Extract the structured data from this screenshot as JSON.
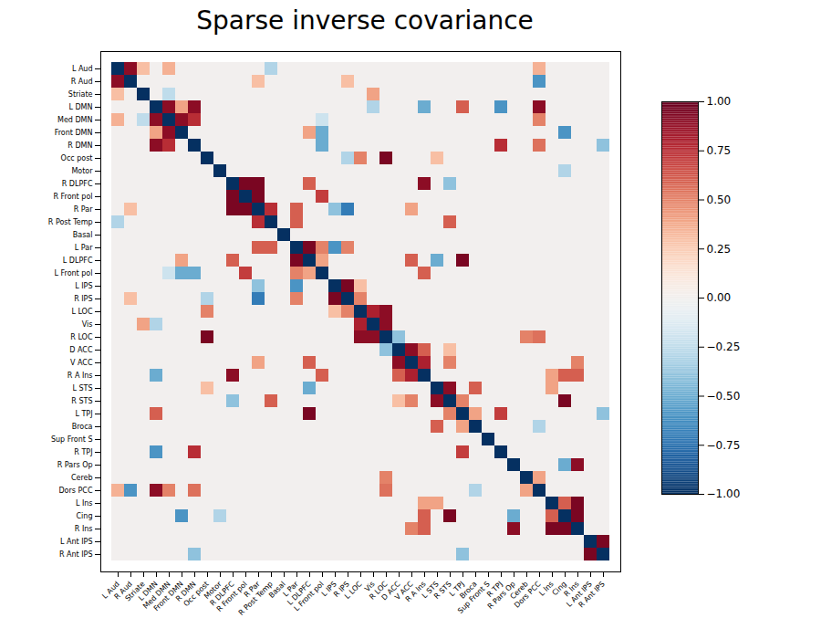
{
  "chart_data": {
    "type": "heatmap",
    "title": "Sparse inverse covariance",
    "categories": [
      "L Aud",
      "R Aud",
      "Striate",
      "L DMN",
      "Med DMN",
      "Front DMN",
      "R DMN",
      "Occ post",
      "Motor",
      "R DLPFC",
      "R Front pol",
      "R Par",
      "R Post Temp",
      "Basal",
      "L Par",
      "L DLPFC",
      "L Front pol",
      "L IPS",
      "R IPS",
      "L LOC",
      "Vis",
      "R LOC",
      "D ACC",
      "V ACC",
      "R A Ins",
      "L STS",
      "R STS",
      "L TPJ",
      "Broca",
      "Sup Front S",
      "R TPJ",
      "R Pars Op",
      "Cereb",
      "Dors PCC",
      "L Ins",
      "Cing",
      "R Ins",
      "L Ant IPS",
      "R Ant IPS"
    ],
    "cells": [
      [
        -1,
        0.9,
        0.3,
        0,
        0.35,
        0,
        0,
        0,
        0,
        0,
        0,
        0,
        -0.3,
        0,
        0,
        0,
        0,
        0,
        0,
        0,
        0,
        0,
        0,
        0,
        0,
        0,
        0,
        0,
        0,
        0,
        0,
        0,
        0,
        0.35,
        0,
        0,
        0,
        0,
        0
      ],
      [
        0.9,
        -1,
        0,
        0,
        0,
        0,
        0,
        0,
        0,
        0,
        0,
        0.3,
        0,
        0,
        0,
        0,
        0,
        0,
        0.3,
        0,
        0,
        0,
        0,
        0,
        0,
        0,
        0,
        0,
        0,
        0,
        0,
        0,
        0,
        -0.6,
        0,
        0,
        0,
        0,
        0
      ],
      [
        0.3,
        0,
        -1,
        0,
        -0.25,
        0,
        0,
        0,
        0,
        0,
        0,
        0,
        0,
        0,
        0,
        0,
        0,
        0,
        0,
        0,
        0.4,
        0,
        0,
        0,
        0,
        0,
        0,
        0,
        0,
        0,
        0,
        0,
        0,
        0,
        0,
        0,
        0,
        0,
        0
      ],
      [
        0,
        0,
        0,
        -1,
        0.9,
        0.4,
        0.9,
        0,
        0,
        0,
        0,
        0,
        0,
        0,
        0,
        0,
        0,
        0,
        0,
        0,
        -0.3,
        0,
        0,
        0,
        -0.5,
        0,
        0,
        0.6,
        0,
        0,
        -0.6,
        0,
        0,
        0.9,
        0,
        0,
        0,
        0,
        0
      ],
      [
        0.35,
        0,
        -0.25,
        0.9,
        -1,
        0.9,
        0.75,
        0,
        0,
        0,
        0,
        0,
        0,
        0,
        0,
        0,
        -0.2,
        0,
        0,
        0,
        0,
        0,
        0,
        0,
        0,
        0,
        0,
        0,
        0,
        0,
        0,
        0,
        0,
        0.5,
        0,
        0,
        0,
        0,
        0
      ],
      [
        0,
        0,
        0,
        0.4,
        0.9,
        -1,
        0,
        0,
        0,
        0,
        0,
        0,
        0,
        0,
        0,
        0.4,
        -0.5,
        0,
        0,
        0,
        0,
        0,
        0,
        0,
        0,
        0,
        0,
        0,
        0,
        0,
        0,
        0,
        0,
        0,
        0,
        -0.6,
        0,
        0,
        0
      ],
      [
        0,
        0,
        0,
        0.9,
        0.75,
        0,
        -1,
        0,
        0,
        0,
        0,
        0,
        0,
        0,
        0,
        0,
        -0.5,
        0,
        0,
        0,
        0,
        0,
        0,
        0,
        0,
        0,
        0,
        0,
        0,
        0,
        0.75,
        0,
        0,
        0.55,
        0,
        0,
        0,
        0,
        -0.4
      ],
      [
        0,
        0,
        0,
        0,
        0,
        0,
        0,
        -1,
        0,
        0,
        0,
        0,
        0,
        0,
        0,
        0,
        0,
        0,
        -0.3,
        0.5,
        0,
        0.95,
        0,
        0,
        0,
        0.3,
        0,
        0,
        0,
        0,
        0,
        0,
        0,
        0,
        0,
        0,
        0,
        0,
        0
      ],
      [
        0,
        0,
        0,
        0,
        0,
        0,
        0,
        0,
        -1,
        0,
        0,
        0,
        0,
        0,
        0,
        0,
        0,
        0,
        0,
        0,
        0,
        0,
        0,
        0,
        0,
        0,
        0,
        0,
        0,
        0,
        0,
        0,
        0,
        0,
        0,
        -0.3,
        0,
        0,
        0
      ],
      [
        0,
        0,
        0,
        0,
        0,
        0,
        0,
        0,
        0,
        -1,
        0.95,
        0.95,
        0,
        0,
        0,
        0.6,
        0,
        0,
        0,
        0,
        0,
        0,
        0,
        0,
        0.9,
        0,
        -0.4,
        0,
        0,
        0,
        0,
        0,
        0,
        0,
        0,
        0,
        0,
        0,
        0
      ],
      [
        0,
        0,
        0,
        0,
        0,
        0,
        0,
        0,
        0,
        0.95,
        -1,
        0.95,
        0,
        0,
        0,
        0,
        0.7,
        0,
        0,
        0,
        0,
        0,
        0,
        0,
        0,
        0,
        0,
        0,
        0,
        0,
        0,
        0,
        0,
        0,
        0,
        0,
        0,
        0,
        0
      ],
      [
        0,
        0.3,
        0,
        0,
        0,
        0,
        0,
        0,
        0,
        0.95,
        0.95,
        -1,
        0.75,
        0,
        0.6,
        0,
        0,
        -0.4,
        -0.7,
        0,
        0,
        0,
        0,
        0.4,
        0,
        0,
        0,
        0,
        0,
        0,
        0,
        0,
        0,
        0,
        0,
        0,
        0,
        0,
        0
      ],
      [
        -0.3,
        0,
        0,
        0,
        0,
        0,
        0,
        0,
        0,
        0,
        0,
        0.75,
        -1,
        0,
        0.6,
        0,
        0,
        0,
        0,
        0,
        0,
        0,
        0,
        0,
        0,
        0,
        0.6,
        0,
        0,
        0,
        0,
        0,
        0,
        0,
        0,
        0,
        0,
        0,
        0
      ],
      [
        0,
        0,
        0,
        0,
        0,
        0,
        0,
        0,
        0,
        0,
        0,
        0,
        0,
        -1,
        0,
        0,
        0,
        0,
        0,
        0,
        0,
        0,
        0,
        0,
        0,
        0,
        0,
        0,
        0,
        0,
        0,
        0,
        0,
        0,
        0,
        0,
        0,
        0,
        0
      ],
      [
        0,
        0,
        0,
        0,
        0,
        0,
        0,
        0,
        0,
        0,
        0,
        0.6,
        0.6,
        0,
        -1,
        0.95,
        0.5,
        -0.6,
        0.5,
        0,
        0,
        0,
        0,
        0,
        0,
        0,
        0,
        0,
        0,
        0,
        0,
        0,
        0,
        0,
        0,
        0,
        0,
        0,
        0
      ],
      [
        0,
        0,
        0,
        0,
        0,
        0.4,
        0,
        0,
        0,
        0.6,
        0,
        0,
        0,
        0,
        0.95,
        -1,
        0.4,
        0,
        0,
        0,
        0,
        0,
        0,
        0.6,
        0,
        -0.5,
        0,
        0.95,
        0,
        0,
        0,
        0,
        0,
        0,
        0,
        0,
        0,
        0,
        0
      ],
      [
        0,
        0,
        0,
        0,
        -0.2,
        -0.5,
        -0.5,
        0,
        0,
        0,
        0.7,
        0,
        0,
        0,
        0.5,
        0.4,
        -1,
        0,
        0,
        0,
        0,
        0,
        0,
        0,
        0.6,
        0,
        0,
        0,
        0,
        0,
        0,
        0,
        0,
        0,
        0,
        0,
        0,
        0,
        0
      ],
      [
        0,
        0,
        0,
        0,
        0,
        0,
        0,
        0,
        0,
        0,
        0,
        -0.4,
        0,
        0,
        -0.6,
        0,
        0,
        -1,
        0.95,
        0.3,
        0,
        0,
        0,
        0,
        0,
        0,
        0,
        0,
        0,
        0,
        0,
        0,
        0,
        0,
        0,
        0,
        0,
        0,
        0
      ],
      [
        0,
        0.3,
        0,
        0,
        0,
        0,
        0,
        -0.3,
        0,
        0,
        0,
        -0.7,
        0,
        0,
        0.5,
        0,
        0,
        0.95,
        -1,
        0.5,
        0,
        0,
        0,
        0,
        0,
        0,
        0,
        0,
        0,
        0,
        0,
        0,
        0,
        0,
        0,
        0,
        0,
        0,
        0
      ],
      [
        0,
        0,
        0,
        0,
        0,
        0,
        0,
        0.5,
        0,
        0,
        0,
        0,
        0,
        0,
        0,
        0,
        0,
        0.3,
        0.5,
        -1,
        0.8,
        0.9,
        0,
        0,
        0,
        0,
        0,
        0,
        0,
        0,
        0,
        0,
        0,
        0,
        0,
        0,
        0,
        0,
        0
      ],
      [
        0,
        0,
        0.4,
        -0.3,
        0,
        0,
        0,
        0,
        0,
        0,
        0,
        0,
        0,
        0,
        0,
        0,
        0,
        0,
        0,
        0.8,
        -1,
        0.9,
        0,
        0,
        0,
        0,
        0,
        0,
        0,
        0,
        0,
        0,
        0,
        0,
        0,
        0,
        0,
        0,
        0
      ],
      [
        0,
        0,
        0,
        0,
        0,
        0,
        0,
        0.95,
        0,
        0,
        0,
        0,
        0,
        0,
        0,
        0,
        0,
        0,
        0,
        0.9,
        0.9,
        -1,
        -0.4,
        0,
        0,
        0,
        0,
        0,
        0,
        0,
        0,
        0,
        0.5,
        0.55,
        0,
        0,
        0,
        0,
        0
      ],
      [
        0,
        0,
        0,
        0,
        0,
        0,
        0,
        0,
        0,
        0,
        0,
        0,
        0,
        0,
        0,
        0,
        0,
        0,
        0,
        0,
        0,
        -0.4,
        -1,
        0.9,
        0.6,
        0,
        0.3,
        0,
        0,
        0,
        0,
        0,
        0,
        0,
        0,
        0,
        0,
        0,
        0
      ],
      [
        0,
        0,
        0,
        0,
        0,
        0,
        0,
        0,
        0,
        0,
        0,
        0.4,
        0,
        0,
        0,
        0.6,
        0,
        0,
        0,
        0,
        0,
        0,
        0.9,
        -1,
        0.8,
        0,
        0.5,
        0,
        0,
        0,
        0,
        0,
        0,
        0,
        0,
        0,
        0.5,
        0,
        0
      ],
      [
        0,
        0,
        0,
        -0.5,
        0,
        0,
        0,
        0,
        0,
        0.9,
        0,
        0,
        0,
        0,
        0,
        0,
        0.6,
        0,
        0,
        0,
        0,
        0,
        0.6,
        0.8,
        -1,
        0,
        0,
        0,
        0,
        0,
        0,
        0,
        0,
        0,
        0.4,
        0.6,
        0.6,
        0,
        0
      ],
      [
        0,
        0,
        0,
        0,
        0,
        0,
        0,
        0.3,
        0,
        0,
        0,
        0,
        0,
        0,
        0,
        -0.5,
        0,
        0,
        0,
        0,
        0,
        0,
        0,
        0,
        0,
        -1,
        0.9,
        0,
        0.6,
        0,
        0,
        0,
        0,
        0,
        0.4,
        0,
        0,
        0,
        0
      ],
      [
        0,
        0,
        0,
        0,
        0,
        0,
        0,
        0,
        0,
        -0.4,
        0,
        0,
        0.6,
        0,
        0,
        0,
        0,
        0,
        0,
        0,
        0,
        0,
        0.3,
        0.5,
        0,
        0.9,
        -1,
        0.5,
        0,
        0,
        0,
        0,
        0,
        0,
        0,
        0.95,
        0,
        0,
        0
      ],
      [
        0,
        0,
        0,
        0.6,
        0,
        0,
        0,
        0,
        0,
        0,
        0,
        0,
        0,
        0,
        0,
        0.95,
        0,
        0,
        0,
        0,
        0,
        0,
        0,
        0,
        0,
        0,
        0.5,
        -1,
        0.4,
        0,
        0.7,
        0,
        0,
        0,
        0,
        0,
        0,
        0,
        -0.4
      ],
      [
        0,
        0,
        0,
        0,
        0,
        0,
        0,
        0,
        0,
        0,
        0,
        0,
        0,
        0,
        0,
        0,
        0,
        0,
        0,
        0,
        0,
        0,
        0,
        0,
        0,
        0.6,
        0,
        0.4,
        -1,
        0,
        0,
        0,
        0,
        -0.3,
        0,
        0,
        0,
        0,
        0
      ],
      [
        0,
        0,
        0,
        0,
        0,
        0,
        0,
        0,
        0,
        0,
        0,
        0,
        0,
        0,
        0,
        0,
        0,
        0,
        0,
        0,
        0,
        0,
        0,
        0,
        0,
        0,
        0,
        0,
        0,
        -1,
        0,
        0,
        0,
        0,
        0,
        0,
        0,
        0,
        0
      ],
      [
        0,
        0,
        0,
        -0.6,
        0,
        0,
        0.75,
        0,
        0,
        0,
        0,
        0,
        0,
        0,
        0,
        0,
        0,
        0,
        0,
        0,
        0,
        0,
        0,
        0,
        0,
        0,
        0,
        0.7,
        0,
        0,
        -1,
        0,
        0,
        0,
        0,
        0,
        0,
        0,
        0
      ],
      [
        0,
        0,
        0,
        0,
        0,
        0,
        0,
        0,
        0,
        0,
        0,
        0,
        0,
        0,
        0,
        0,
        0,
        0,
        0,
        0,
        0,
        0,
        0,
        0,
        0,
        0,
        0,
        0,
        0,
        0,
        0,
        -1,
        0,
        0,
        0,
        -0.5,
        0.9,
        0,
        0
      ],
      [
        0,
        0,
        0,
        0,
        0,
        0,
        0,
        0,
        0,
        0,
        0,
        0,
        0,
        0,
        0,
        0,
        0,
        0,
        0,
        0,
        0,
        0.5,
        0,
        0,
        0,
        0,
        0,
        0,
        0,
        0,
        0,
        0,
        -1,
        0.4,
        0,
        0,
        0,
        0,
        0
      ],
      [
        0.35,
        -0.6,
        0,
        0.9,
        0.5,
        0,
        0.55,
        0,
        0,
        0,
        0,
        0,
        0,
        0,
        0,
        0,
        0,
        0,
        0,
        0,
        0,
        0.55,
        0,
        0,
        0,
        0,
        0,
        0,
        -0.3,
        0,
        0,
        0,
        0.4,
        -1,
        0,
        0,
        0,
        0,
        0
      ],
      [
        0,
        0,
        0,
        0,
        0,
        0,
        0,
        0,
        0,
        0,
        0,
        0,
        0,
        0,
        0,
        0,
        0,
        0,
        0,
        0,
        0,
        0,
        0,
        0,
        0.4,
        0.4,
        0,
        0,
        0,
        0,
        0,
        0,
        0,
        0,
        -1,
        0.6,
        0.95,
        0,
        0
      ],
      [
        0,
        0,
        0,
        0,
        0,
        -0.6,
        0,
        0,
        -0.3,
        0,
        0,
        0,
        0,
        0,
        0,
        0,
        0,
        0,
        0,
        0,
        0,
        0,
        0,
        0,
        0.6,
        0,
        0.95,
        0,
        0,
        0,
        0,
        -0.5,
        0,
        0,
        0.6,
        -1,
        0.95,
        0,
        0
      ],
      [
        0,
        0,
        0,
        0,
        0,
        0,
        0,
        0,
        0,
        0,
        0,
        0,
        0,
        0,
        0,
        0,
        0,
        0,
        0,
        0,
        0,
        0,
        0,
        0.5,
        0.6,
        0,
        0,
        0,
        0,
        0,
        0,
        0.9,
        0,
        0,
        0.95,
        0.95,
        -1,
        0,
        0
      ],
      [
        0,
        0,
        0,
        0,
        0,
        0,
        0,
        0,
        0,
        0,
        0,
        0,
        0,
        0,
        0,
        0,
        0,
        0,
        0,
        0,
        0,
        0,
        0,
        0,
        0,
        0,
        0,
        0,
        0,
        0,
        0,
        0,
        0,
        0,
        0,
        0,
        0,
        -1,
        0.95
      ],
      [
        0,
        0,
        0,
        0,
        0,
        0,
        -0.4,
        0,
        0,
        0,
        0,
        0,
        0,
        0,
        0,
        0,
        0,
        0,
        0,
        0,
        0,
        0,
        0,
        0,
        0,
        0,
        0,
        -0.4,
        0,
        0,
        0,
        0,
        0,
        0,
        0,
        0,
        0,
        0.95,
        -1
      ]
    ],
    "color_range": [
      -1,
      1
    ],
    "color_ticks": [
      {
        "value": -1,
        "label": "−1.00"
      },
      {
        "value": -0.75,
        "label": "−0.75"
      },
      {
        "value": -0.5,
        "label": "−0.50"
      },
      {
        "value": -0.25,
        "label": "−0.25"
      },
      {
        "value": 0,
        "label": "0.00"
      },
      0.25,
      {
        "value": 0.5,
        "label": "0.50"
      },
      0.75,
      {
        "value": 1,
        "label": "1.00"
      }
    ]
  }
}
